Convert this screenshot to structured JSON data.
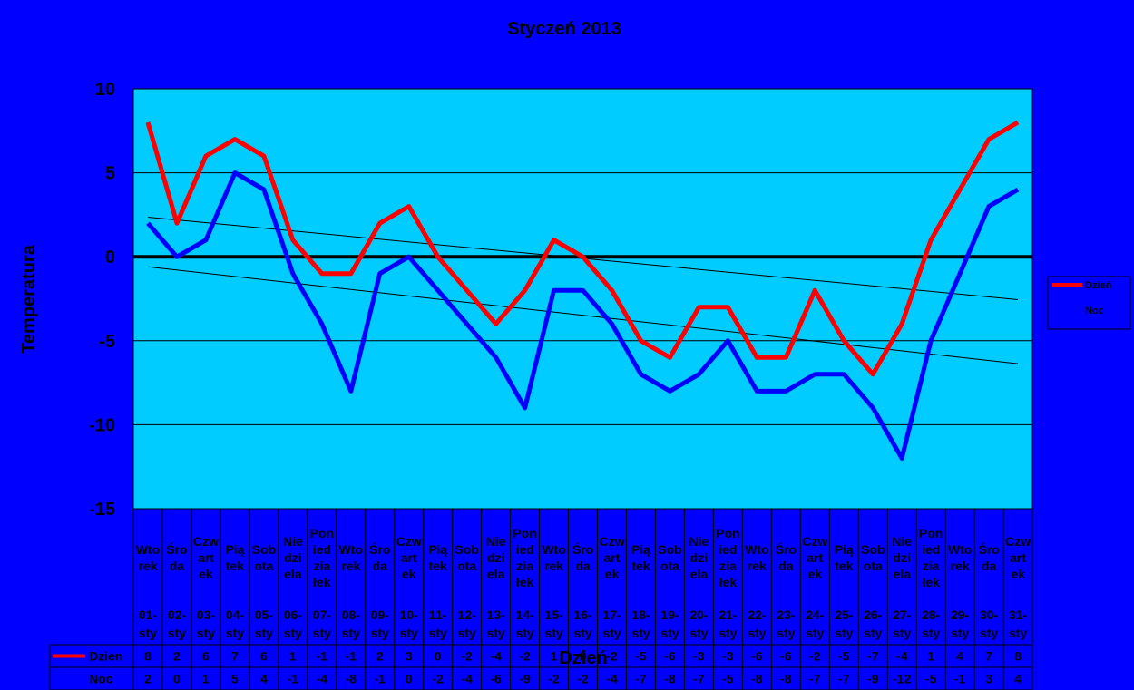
{
  "chart_data": {
    "type": "line",
    "title": "Styczeń 2013",
    "xlabel": "Dzień",
    "ylabel": "Temperatura",
    "ylim": [
      -15,
      10
    ],
    "yticks": [
      10,
      5,
      0,
      -5,
      -10,
      -15
    ],
    "grid": true,
    "legend": "right",
    "categories": [
      {
        "weekday": "Wtorek",
        "date": "01-sty"
      },
      {
        "weekday": "Środa",
        "date": "02-sty"
      },
      {
        "weekday": "Czwartek",
        "date": "03-sty"
      },
      {
        "weekday": "Piątek",
        "date": "04-sty"
      },
      {
        "weekday": "Sobota",
        "date": "05-sty"
      },
      {
        "weekday": "Niedziela",
        "date": "06-sty"
      },
      {
        "weekday": "Poniedziałek",
        "date": "07-sty"
      },
      {
        "weekday": "Wtorek",
        "date": "08-sty"
      },
      {
        "weekday": "Środa",
        "date": "09-sty"
      },
      {
        "weekday": "Czwartek",
        "date": "10-sty"
      },
      {
        "weekday": "Piątek",
        "date": "11-sty"
      },
      {
        "weekday": "Sobota",
        "date": "12-sty"
      },
      {
        "weekday": "Niedziela",
        "date": "13-sty"
      },
      {
        "weekday": "Poniedziałek",
        "date": "14-sty"
      },
      {
        "weekday": "Wtorek",
        "date": "15-sty"
      },
      {
        "weekday": "Środa",
        "date": "16-sty"
      },
      {
        "weekday": "Czwartek",
        "date": "17-sty"
      },
      {
        "weekday": "Piątek",
        "date": "18-sty"
      },
      {
        "weekday": "Sobota",
        "date": "19-sty"
      },
      {
        "weekday": "Niedziela",
        "date": "20-sty"
      },
      {
        "weekday": "Poniedziałek",
        "date": "21-sty"
      },
      {
        "weekday": "Wtorek",
        "date": "22-sty"
      },
      {
        "weekday": "Środa",
        "date": "23-sty"
      },
      {
        "weekday": "Czwartek",
        "date": "24-sty"
      },
      {
        "weekday": "Piątek",
        "date": "25-sty"
      },
      {
        "weekday": "Sobota",
        "date": "26-sty"
      },
      {
        "weekday": "Niedziela",
        "date": "27-sty"
      },
      {
        "weekday": "Poniedziałek",
        "date": "28-sty"
      },
      {
        "weekday": "Wtorek",
        "date": "29-sty"
      },
      {
        "weekday": "Środa",
        "date": "30-sty"
      },
      {
        "weekday": "Czwartek",
        "date": "31-sty"
      }
    ],
    "series": [
      {
        "name": "Dzień",
        "table_label": "Dzien",
        "color": "#ff0000",
        "values": [
          8,
          2,
          6,
          7,
          6,
          1,
          -1,
          -1,
          2,
          3,
          0,
          -2,
          -4,
          -2,
          1,
          0,
          -2,
          -5,
          -6,
          -3,
          -3,
          -6,
          -6,
          -2,
          -5,
          -7,
          -4,
          1,
          4,
          7,
          8
        ]
      },
      {
        "name": "Noc",
        "table_label": "Noc",
        "color": "#0000ff",
        "values": [
          2,
          0,
          1,
          5,
          4,
          -1,
          -4,
          -8,
          -1,
          0,
          -2,
          -4,
          -6,
          -9,
          -2,
          -2,
          -4,
          -7,
          -8,
          -7,
          -5,
          -8,
          -8,
          -7,
          -7,
          -9,
          -12,
          -5,
          -1,
          3,
          4
        ]
      }
    ],
    "trendlines": true,
    "colors": {
      "background": "#0000ff",
      "plot_area": "#00ccff",
      "gridline": "#000000"
    }
  }
}
